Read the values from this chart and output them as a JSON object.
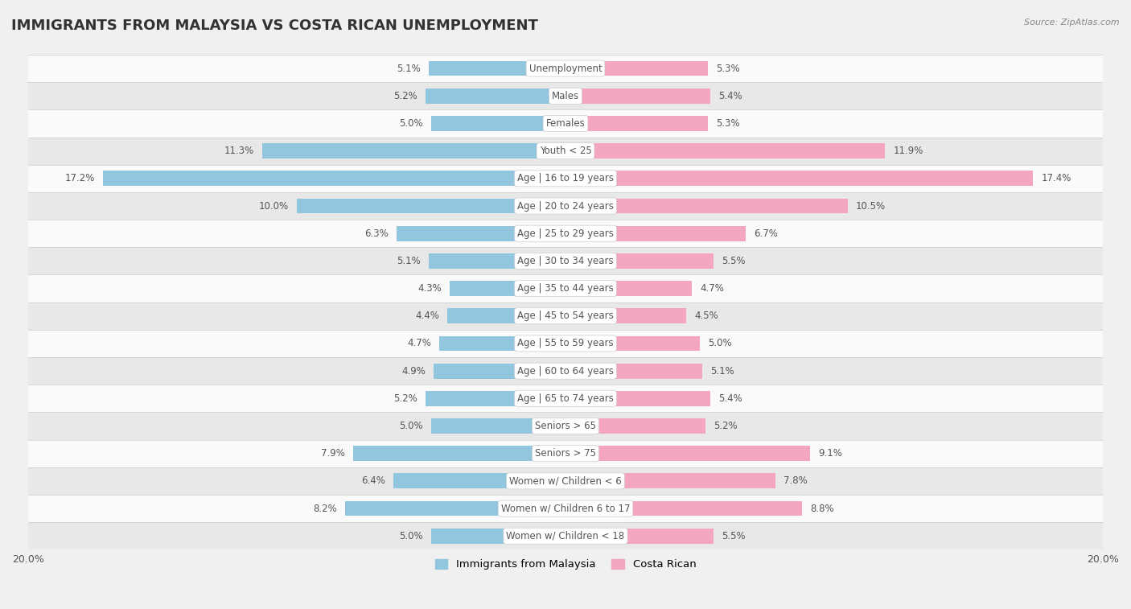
{
  "title": "IMMIGRANTS FROM MALAYSIA VS COSTA RICAN UNEMPLOYMENT",
  "source": "Source: ZipAtlas.com",
  "categories": [
    "Unemployment",
    "Males",
    "Females",
    "Youth < 25",
    "Age | 16 to 19 years",
    "Age | 20 to 24 years",
    "Age | 25 to 29 years",
    "Age | 30 to 34 years",
    "Age | 35 to 44 years",
    "Age | 45 to 54 years",
    "Age | 55 to 59 years",
    "Age | 60 to 64 years",
    "Age | 65 to 74 years",
    "Seniors > 65",
    "Seniors > 75",
    "Women w/ Children < 6",
    "Women w/ Children 6 to 17",
    "Women w/ Children < 18"
  ],
  "malaysia_values": [
    5.1,
    5.2,
    5.0,
    11.3,
    17.2,
    10.0,
    6.3,
    5.1,
    4.3,
    4.4,
    4.7,
    4.9,
    5.2,
    5.0,
    7.9,
    6.4,
    8.2,
    5.0
  ],
  "costarican_values": [
    5.3,
    5.4,
    5.3,
    11.9,
    17.4,
    10.5,
    6.7,
    5.5,
    4.7,
    4.5,
    5.0,
    5.1,
    5.4,
    5.2,
    9.1,
    7.8,
    8.8,
    5.5
  ],
  "malaysia_color": "#92c5de",
  "costarican_color": "#f4a6be",
  "bar_height": 0.55,
  "xlim": 20.0,
  "background_color": "#f0f0f0",
  "row_colors": [
    "#fafafa",
    "#e8e8e8"
  ],
  "legend_malaysia": "Immigrants from Malaysia",
  "legend_costarican": "Costa Rican",
  "title_fontsize": 13,
  "label_fontsize": 8.5,
  "value_fontsize": 8.5,
  "pill_color": "#ffffff",
  "pill_text_color": "#555555"
}
